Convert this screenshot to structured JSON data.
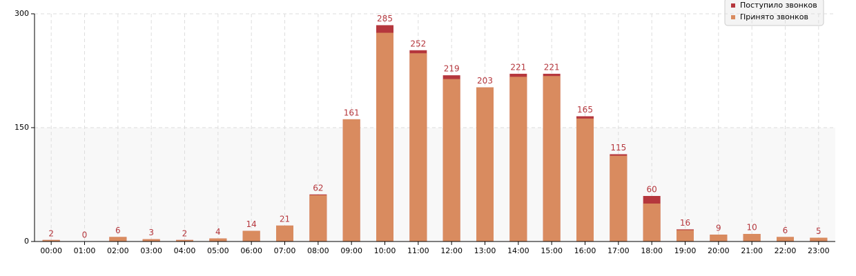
{
  "chart_data": {
    "type": "bar",
    "categories": [
      "00:00",
      "01:00",
      "02:00",
      "03:00",
      "04:00",
      "05:00",
      "06:00",
      "07:00",
      "08:00",
      "09:00",
      "10:00",
      "11:00",
      "12:00",
      "13:00",
      "14:00",
      "15:00",
      "16:00",
      "17:00",
      "18:00",
      "19:00",
      "20:00",
      "21:00",
      "22:00",
      "23:00"
    ],
    "series": [
      {
        "name": "Поступило звонков",
        "color": "#b5373d",
        "values": [
          2,
          0,
          6,
          3,
          2,
          4,
          14,
          21,
          62,
          161,
          285,
          252,
          219,
          203,
          221,
          221,
          165,
          115,
          60,
          16,
          9,
          10,
          6,
          5
        ]
      },
      {
        "name": "Принято звонков",
        "color": "#d98b5f",
        "values": [
          2,
          0,
          6,
          3,
          2,
          4,
          14,
          21,
          61,
          161,
          275,
          248,
          214,
          203,
          217,
          218,
          162,
          113,
          50,
          15,
          9,
          10,
          6,
          5
        ]
      }
    ],
    "ylim": [
      0,
      300
    ],
    "yticks": [
      0,
      150,
      300
    ],
    "grid": true,
    "legend": "top-right"
  }
}
